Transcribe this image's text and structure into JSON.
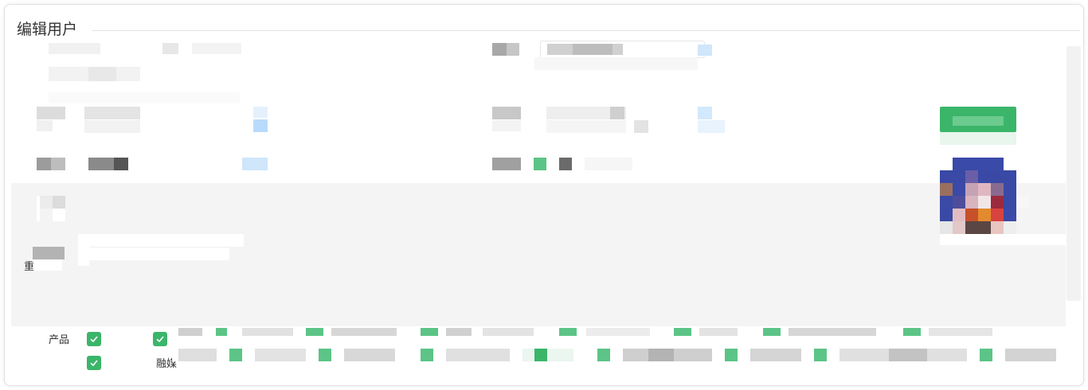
{
  "dialog": {
    "title": "编辑用户"
  },
  "form": {
    "fragment_label": "重",
    "permissions": {
      "group_label": "产品",
      "partial_option_label": "融媒"
    }
  },
  "colors": {
    "accent_green": "#3bb56a",
    "link_blue": "#cfe6fb",
    "panel_grey": "#f4f4f4"
  },
  "icons": {
    "checkbox": "check-icon",
    "avatar": "avatar-icon"
  }
}
